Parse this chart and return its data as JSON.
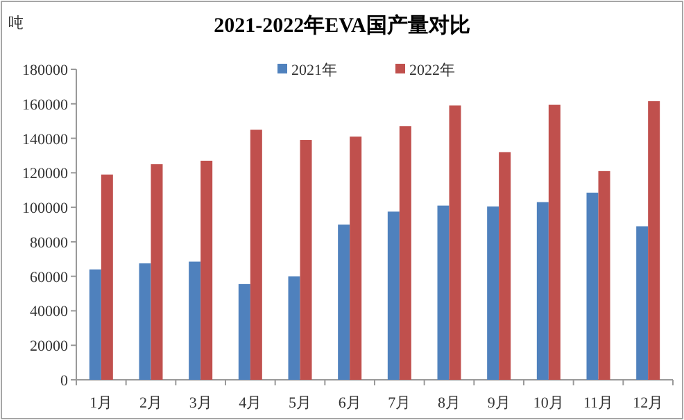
{
  "chart_data": {
    "type": "bar",
    "title": "2021-2022年EVA国产量对比",
    "ylabel": "吨",
    "categories": [
      "1月",
      "2月",
      "3月",
      "4月",
      "5月",
      "6月",
      "7月",
      "8月",
      "9月",
      "10月",
      "11月",
      "12月"
    ],
    "series": [
      {
        "name": "2021年",
        "color": "#4f81bd",
        "values": [
          64000,
          67500,
          68500,
          55500,
          60000,
          90000,
          97500,
          101000,
          100500,
          103000,
          108500,
          89000
        ]
      },
      {
        "name": "2022年",
        "color": "#c0504d",
        "values": [
          119000,
          125000,
          127000,
          145000,
          139000,
          141000,
          147000,
          159000,
          132000,
          159500,
          121000,
          161500
        ]
      }
    ],
    "ylim": [
      0,
      180000
    ],
    "yticks": [
      0,
      20000,
      40000,
      60000,
      80000,
      100000,
      120000,
      140000,
      160000,
      180000
    ],
    "grid": false,
    "legend": "top"
  }
}
